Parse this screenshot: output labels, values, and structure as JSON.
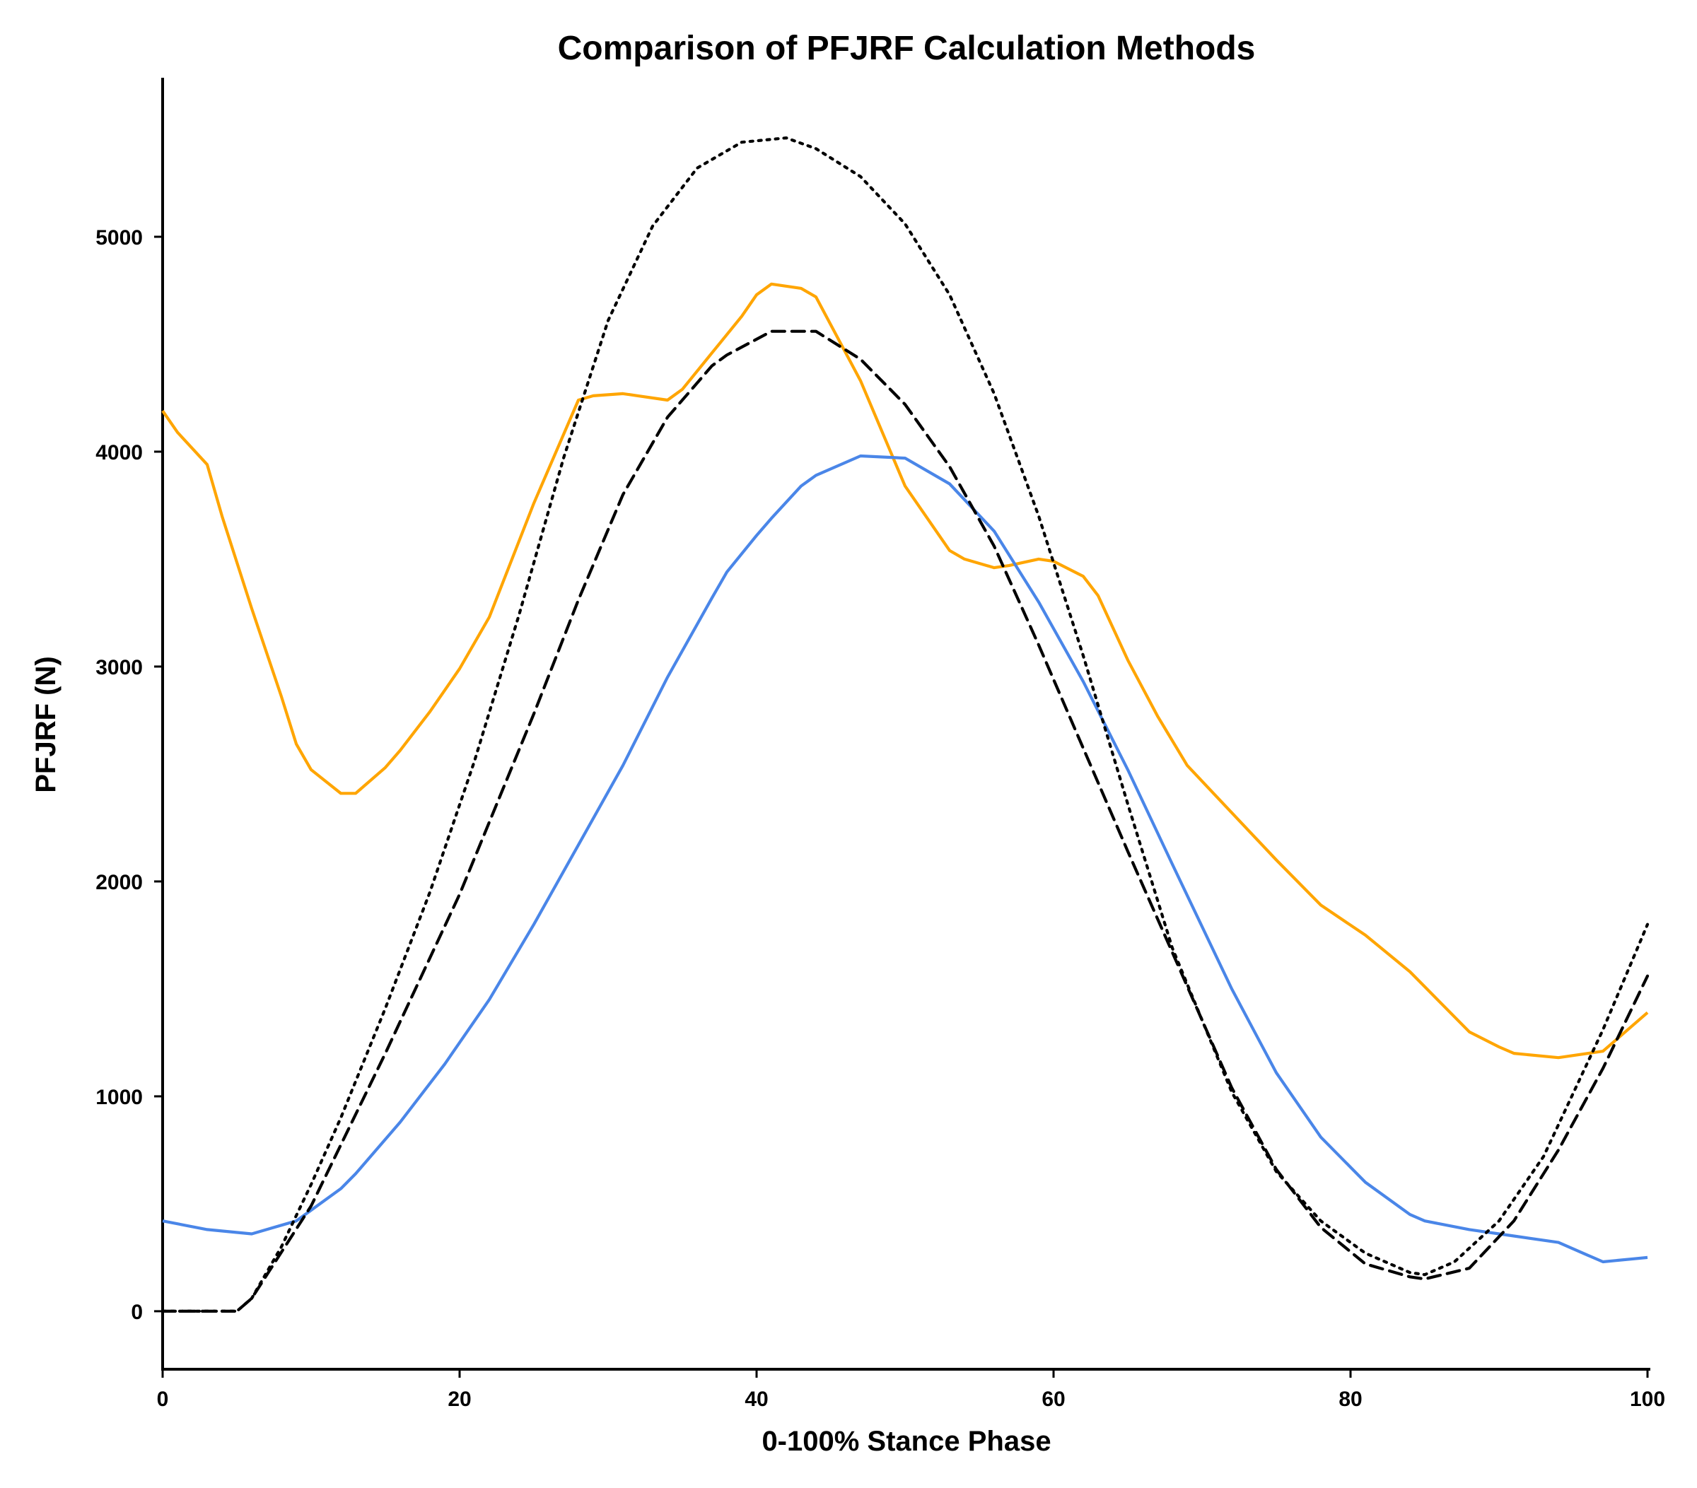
{
  "chart_data": {
    "type": "line",
    "title": "Comparison of PFJRF Calculation Methods",
    "xlabel": "0-100% Stance Phase",
    "ylabel": "PFJRF (N)",
    "xlim": [
      0,
      100
    ],
    "ylim": [
      -270,
      5740
    ],
    "xticks": [
      0,
      20,
      40,
      60,
      80,
      100
    ],
    "yticks": [
      0,
      1000,
      2000,
      3000,
      4000,
      5000
    ],
    "grid": false,
    "legend": "none",
    "series": [
      {
        "color": "#FFA500",
        "style": "solid",
        "x": [
          0,
          1,
          3,
          4,
          6,
          8,
          9,
          10,
          12,
          13,
          15,
          16,
          18,
          20,
          22,
          25,
          28,
          29,
          31,
          32,
          34,
          35,
          37,
          39,
          40,
          41,
          43,
          44,
          47,
          50,
          53,
          54,
          56,
          57,
          59,
          60,
          62,
          63,
          65,
          67,
          69,
          72,
          75,
          78,
          81,
          84,
          86,
          88,
          90,
          91,
          94,
          97,
          100
        ],
        "y": [
          4190,
          4090,
          3940,
          3700,
          3270,
          2860,
          2640,
          2520,
          2410,
          2410,
          2530,
          2610,
          2790,
          2990,
          3230,
          3760,
          4240,
          4260,
          4270,
          4260,
          4240,
          4290,
          4460,
          4630,
          4730,
          4780,
          4760,
          4720,
          4330,
          3840,
          3540,
          3500,
          3460,
          3470,
          3500,
          3490,
          3420,
          3330,
          3030,
          2770,
          2540,
          2320,
          2100,
          1890,
          1750,
          1580,
          1440,
          1300,
          1230,
          1200,
          1180,
          1210,
          1390
        ]
      },
      {
        "color": "#4A86E8",
        "style": "solid",
        "x": [
          0,
          3,
          6,
          7,
          9,
          10,
          12,
          13,
          16,
          19,
          22,
          25,
          28,
          31,
          34,
          37,
          38,
          40,
          41,
          43,
          44,
          47,
          50,
          53,
          56,
          59,
          62,
          65,
          68,
          72,
          75,
          78,
          81,
          84,
          85,
          88,
          91,
          94,
          96,
          97,
          100
        ],
        "y": [
          420,
          380,
          360,
          380,
          420,
          470,
          570,
          640,
          880,
          1150,
          1450,
          1800,
          2170,
          2540,
          2950,
          3320,
          3440,
          3610,
          3690,
          3840,
          3890,
          3980,
          3970,
          3850,
          3630,
          3300,
          2930,
          2520,
          2080,
          1500,
          1110,
          810,
          600,
          450,
          420,
          380,
          350,
          320,
          260,
          230,
          250
        ]
      },
      {
        "color": "#000000",
        "style": "dashed",
        "x": [
          0,
          5,
          6,
          10,
          15,
          20,
          25,
          28,
          31,
          34,
          37,
          38,
          41,
          44,
          47,
          50,
          53,
          56,
          59,
          62,
          65,
          68,
          72,
          75,
          78,
          81,
          84,
          85,
          88,
          91,
          94,
          97,
          100
        ],
        "y": [
          0,
          0,
          60,
          490,
          1200,
          1940,
          2780,
          3310,
          3800,
          4160,
          4400,
          4450,
          4560,
          4560,
          4430,
          4220,
          3930,
          3560,
          3100,
          2620,
          2140,
          1670,
          1040,
          660,
          390,
          220,
          160,
          150,
          200,
          420,
          750,
          1130,
          1560
        ]
      },
      {
        "color": "#000000",
        "style": "dotted",
        "x": [
          0,
          5,
          6,
          8,
          10,
          12,
          15,
          18,
          21,
          24,
          27,
          30,
          33,
          36,
          39,
          42,
          44,
          47,
          50,
          53,
          56,
          59,
          62,
          65,
          68,
          72,
          75,
          78,
          81,
          84,
          85,
          87,
          90,
          93,
          97,
          100
        ],
        "y": [
          0,
          0,
          60,
          300,
          590,
          900,
          1410,
          1950,
          2560,
          3240,
          3970,
          4610,
          5050,
          5320,
          5440,
          5460,
          5410,
          5280,
          5060,
          4730,
          4270,
          3700,
          3050,
          2360,
          1690,
          1020,
          650,
          420,
          270,
          180,
          170,
          230,
          420,
          720,
          1310,
          1800
        ]
      }
    ]
  }
}
